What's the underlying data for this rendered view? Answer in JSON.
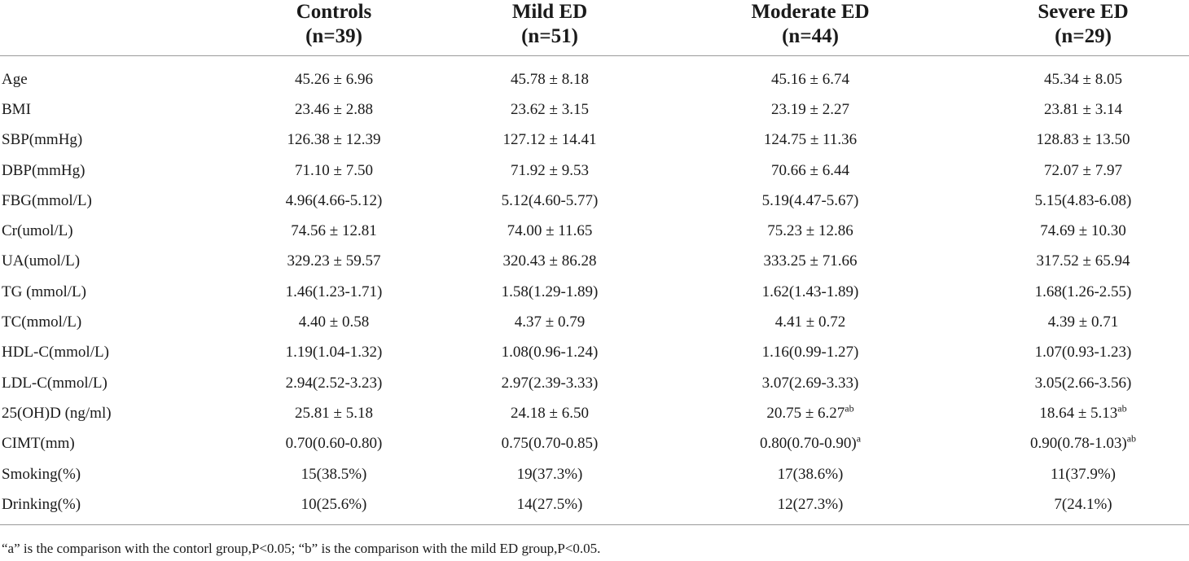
{
  "table": {
    "columns": [
      {
        "line1": "",
        "line2": ""
      },
      {
        "line1": "Controls",
        "line2": "(n=39)"
      },
      {
        "line1": "Mild ED",
        "line2": "(n=51)"
      },
      {
        "line1": "Moderate ED",
        "line2": "(n=44)"
      },
      {
        "line1": "Severe ED",
        "line2": "(n=29)"
      }
    ],
    "rows": [
      {
        "label": "Age",
        "cells": [
          {
            "v": "45.26 ± 6.96",
            "sup": ""
          },
          {
            "v": "45.78 ± 8.18",
            "sup": ""
          },
          {
            "v": "45.16 ± 6.74",
            "sup": ""
          },
          {
            "v": "45.34 ± 8.05",
            "sup": ""
          }
        ]
      },
      {
        "label": "BMI",
        "cells": [
          {
            "v": "23.46 ± 2.88",
            "sup": ""
          },
          {
            "v": "23.62 ± 3.15",
            "sup": ""
          },
          {
            "v": "23.19 ± 2.27",
            "sup": ""
          },
          {
            "v": "23.81 ± 3.14",
            "sup": ""
          }
        ]
      },
      {
        "label": "SBP(mmHg)",
        "cells": [
          {
            "v": "126.38 ± 12.39",
            "sup": ""
          },
          {
            "v": "127.12 ± 14.41",
            "sup": ""
          },
          {
            "v": "124.75 ± 11.36",
            "sup": ""
          },
          {
            "v": "128.83 ± 13.50",
            "sup": ""
          }
        ]
      },
      {
        "label": "DBP(mmHg)",
        "cells": [
          {
            "v": "71.10 ± 7.50",
            "sup": ""
          },
          {
            "v": "71.92 ± 9.53",
            "sup": ""
          },
          {
            "v": "70.66 ± 6.44",
            "sup": ""
          },
          {
            "v": "72.07 ± 7.97",
            "sup": ""
          }
        ]
      },
      {
        "label": "FBG(mmol/L)",
        "cells": [
          {
            "v": "4.96(4.66-5.12)",
            "sup": ""
          },
          {
            "v": "5.12(4.60-5.77)",
            "sup": ""
          },
          {
            "v": "5.19(4.47-5.67)",
            "sup": ""
          },
          {
            "v": "5.15(4.83-6.08)",
            "sup": ""
          }
        ]
      },
      {
        "label": "Cr(umol/L)",
        "cells": [
          {
            "v": "74.56 ± 12.81",
            "sup": ""
          },
          {
            "v": "74.00 ± 11.65",
            "sup": ""
          },
          {
            "v": "75.23 ± 12.86",
            "sup": ""
          },
          {
            "v": "74.69 ± 10.30",
            "sup": ""
          }
        ]
      },
      {
        "label": "UA(umol/L)",
        "cells": [
          {
            "v": "329.23 ± 59.57",
            "sup": ""
          },
          {
            "v": "320.43 ± 86.28",
            "sup": ""
          },
          {
            "v": "333.25 ± 71.66",
            "sup": ""
          },
          {
            "v": "317.52 ± 65.94",
            "sup": ""
          }
        ]
      },
      {
        "label": "TG (mmol/L)",
        "cells": [
          {
            "v": "1.46(1.23-1.71)",
            "sup": ""
          },
          {
            "v": "1.58(1.29-1.89)",
            "sup": ""
          },
          {
            "v": "1.62(1.43-1.89)",
            "sup": ""
          },
          {
            "v": "1.68(1.26-2.55)",
            "sup": ""
          }
        ]
      },
      {
        "label": "TC(mmol/L)",
        "cells": [
          {
            "v": "4.40 ± 0.58",
            "sup": ""
          },
          {
            "v": "4.37 ± 0.79",
            "sup": ""
          },
          {
            "v": "4.41 ± 0.72",
            "sup": ""
          },
          {
            "v": "4.39 ± 0.71",
            "sup": ""
          }
        ]
      },
      {
        "label": "HDL-C(mmol/L)",
        "cells": [
          {
            "v": "1.19(1.04-1.32)",
            "sup": ""
          },
          {
            "v": "1.08(0.96-1.24)",
            "sup": ""
          },
          {
            "v": "1.16(0.99-1.27)",
            "sup": ""
          },
          {
            "v": "1.07(0.93-1.23)",
            "sup": ""
          }
        ]
      },
      {
        "label": "LDL-C(mmol/L)",
        "cells": [
          {
            "v": "2.94(2.52-3.23)",
            "sup": ""
          },
          {
            "v": "2.97(2.39-3.33)",
            "sup": ""
          },
          {
            "v": "3.07(2.69-3.33)",
            "sup": ""
          },
          {
            "v": "3.05(2.66-3.56)",
            "sup": ""
          }
        ]
      },
      {
        "label": "25(OH)D (ng/ml)",
        "cells": [
          {
            "v": "25.81 ± 5.18",
            "sup": ""
          },
          {
            "v": "24.18 ± 6.50",
            "sup": ""
          },
          {
            "v": "20.75 ± 6.27",
            "sup": "ab"
          },
          {
            "v": "18.64 ± 5.13",
            "sup": "ab"
          }
        ]
      },
      {
        "label": "CIMT(mm)",
        "cells": [
          {
            "v": "0.70(0.60-0.80)",
            "sup": ""
          },
          {
            "v": "0.75(0.70-0.85)",
            "sup": ""
          },
          {
            "v": "0.80(0.70-0.90)",
            "sup": "a"
          },
          {
            "v": "0.90(0.78-1.03)",
            "sup": "ab"
          }
        ]
      },
      {
        "label": "Smoking(%)",
        "cells": [
          {
            "v": "15(38.5%)",
            "sup": ""
          },
          {
            "v": "19(37.3%)",
            "sup": ""
          },
          {
            "v": "17(38.6%)",
            "sup": ""
          },
          {
            "v": "11(37.9%)",
            "sup": ""
          }
        ]
      },
      {
        "label": "Drinking(%)",
        "cells": [
          {
            "v": "10(25.6%)",
            "sup": ""
          },
          {
            "v": "14(27.5%)",
            "sup": ""
          },
          {
            "v": "12(27.3%)",
            "sup": ""
          },
          {
            "v": "7(24.1%)",
            "sup": ""
          }
        ]
      }
    ]
  },
  "footnote": "“a” is the comparison with the contorl group,P<0.05; “b” is the comparison with the mild ED group,P<0.05."
}
